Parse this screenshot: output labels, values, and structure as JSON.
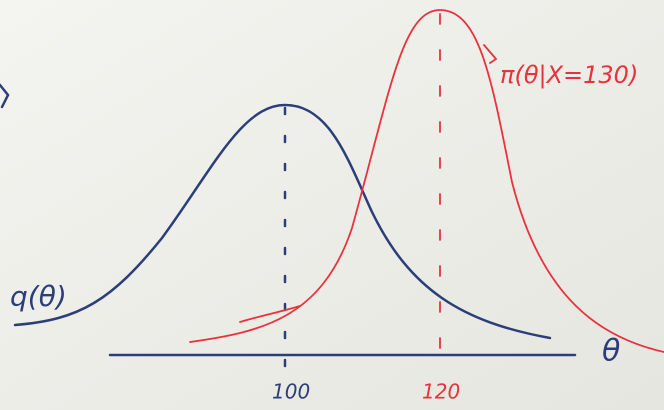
{
  "axis": {
    "label": "θ",
    "ticks": [
      "100",
      "120"
    ]
  },
  "curves": [
    {
      "label": "q(θ)"
    },
    {
      "label": "π(θ|X=130)"
    }
  ]
}
